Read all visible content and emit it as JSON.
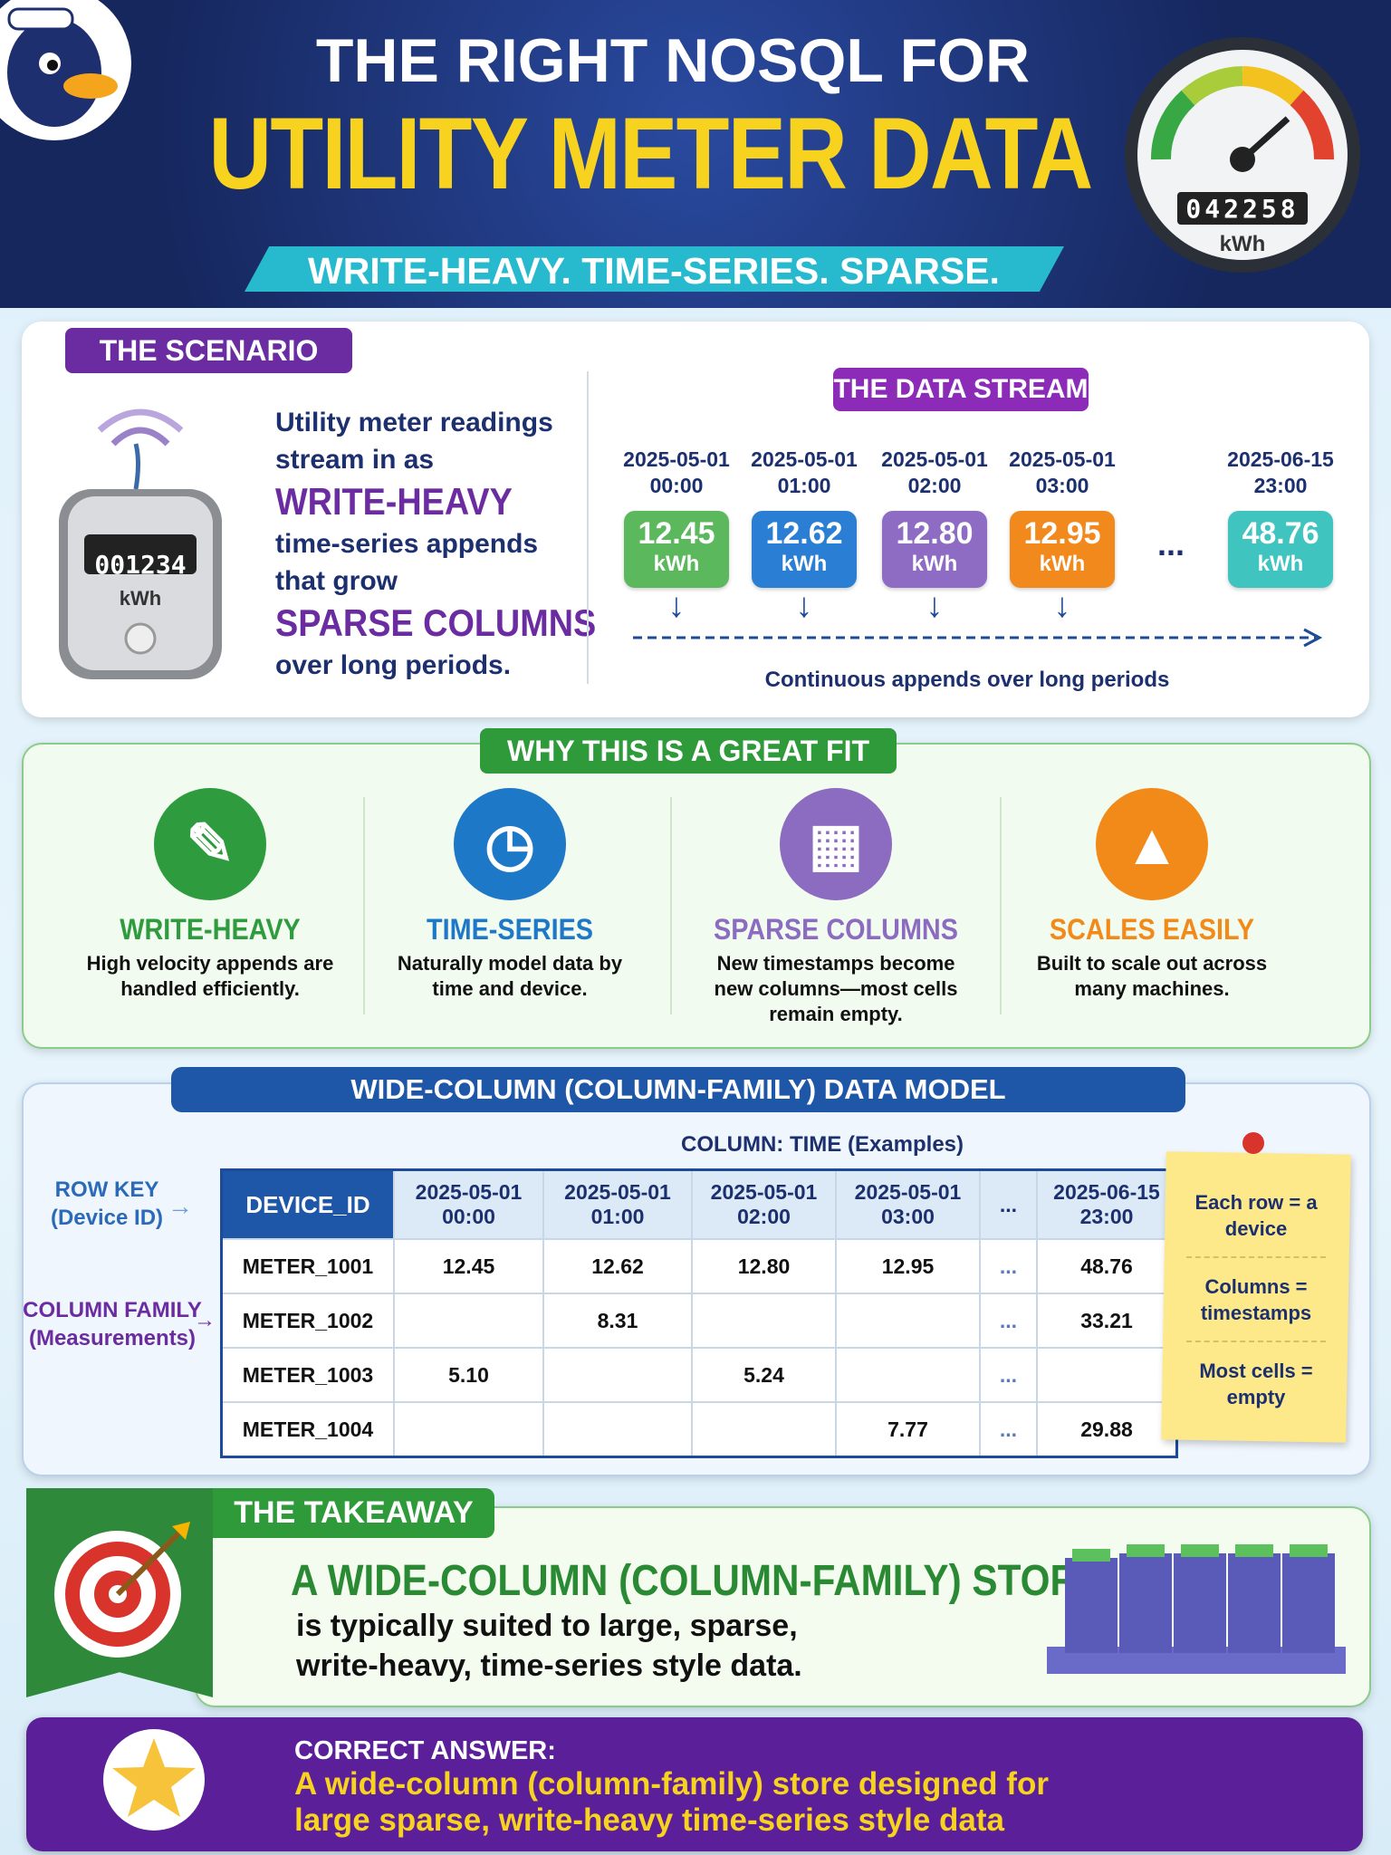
{
  "header": {
    "title_line1": "THE RIGHT NOSQL FOR",
    "title_line2": "UTILITY METER DATA",
    "tagline": "WRITE-HEAVY. TIME-SERIES. SPARSE.",
    "gauge_reading": "042258",
    "gauge_unit": "kWh"
  },
  "scenario": {
    "label": "THE SCENARIO",
    "meter_display": "001234",
    "meter_unit": "kWh",
    "text": [
      "Utility meter readings stream in as",
      "WRITE-HEAVY",
      "time-series appends that grow",
      "SPARSE COLUMNS",
      "over long periods."
    ],
    "stream": {
      "label": "THE DATA STREAM",
      "readings": [
        {
          "date": "2025-05-01",
          "time": "00:00",
          "value": "12.45",
          "unit": "kWh"
        },
        {
          "date": "2025-05-01",
          "time": "01:00",
          "value": "12.62",
          "unit": "kWh"
        },
        {
          "date": "2025-05-01",
          "time": "02:00",
          "value": "12.80",
          "unit": "kWh"
        },
        {
          "date": "2025-05-01",
          "time": "03:00",
          "value": "12.95",
          "unit": "kWh"
        },
        {
          "date": "2025-06-15",
          "time": "23:00",
          "value": "48.76",
          "unit": "kWh"
        }
      ],
      "ellipsis": "...",
      "caption": "Continuous appends over long periods"
    }
  },
  "fit": {
    "label": "WHY THIS IS A GREAT FIT",
    "items": [
      {
        "title": "WRITE-HEAVY",
        "text": "High velocity appends are handled efficiently."
      },
      {
        "title": "TIME-SERIES",
        "text": "Naturally model data by time and device."
      },
      {
        "title": "SPARSE COLUMNS",
        "text": "New timestamps become new columns—most cells remain empty."
      },
      {
        "title": "SCALES EASILY",
        "text": "Built to scale out across many machines."
      }
    ]
  },
  "model": {
    "label": "WIDE-COLUMN (COLUMN-FAMILY) DATA MODEL",
    "column_caption": "COLUMN: TIME (Examples)",
    "row_key": {
      "title": "ROW KEY",
      "sub": "(Device ID)"
    },
    "column_family": {
      "title": "COLUMN FAMILY",
      "sub": "(Measurements)"
    },
    "table": {
      "header": [
        "DEVICE_ID",
        "2025-05-01 00:00",
        "2025-05-01 01:00",
        "2025-05-01 02:00",
        "2025-05-01 03:00",
        "...",
        "2025-06-15 23:00"
      ],
      "rows": [
        [
          "METER_1001",
          "12.45",
          "12.62",
          "12.80",
          "12.95",
          "...",
          "48.76"
        ],
        [
          "METER_1002",
          null,
          "8.31",
          null,
          null,
          "...",
          "33.21"
        ],
        [
          "METER_1003",
          "5.10",
          null,
          "5.24",
          null,
          "...",
          null
        ],
        [
          "METER_1004",
          null,
          null,
          null,
          "7.77",
          "...",
          "29.88"
        ]
      ]
    },
    "note": [
      "Each row = a device",
      "Columns = timestamps",
      "Most cells = empty"
    ]
  },
  "takeaway": {
    "label": "THE TAKEAWAY",
    "heading": "A WIDE-COLUMN (COLUMN-FAMILY) STORE",
    "text": "is typically suited to large, sparse, write-heavy, time-series style data."
  },
  "answer": {
    "label": "CORRECT ANSWER:",
    "text": "A wide-column (column-family) store designed for large sparse, write-heavy time-series style data"
  }
}
